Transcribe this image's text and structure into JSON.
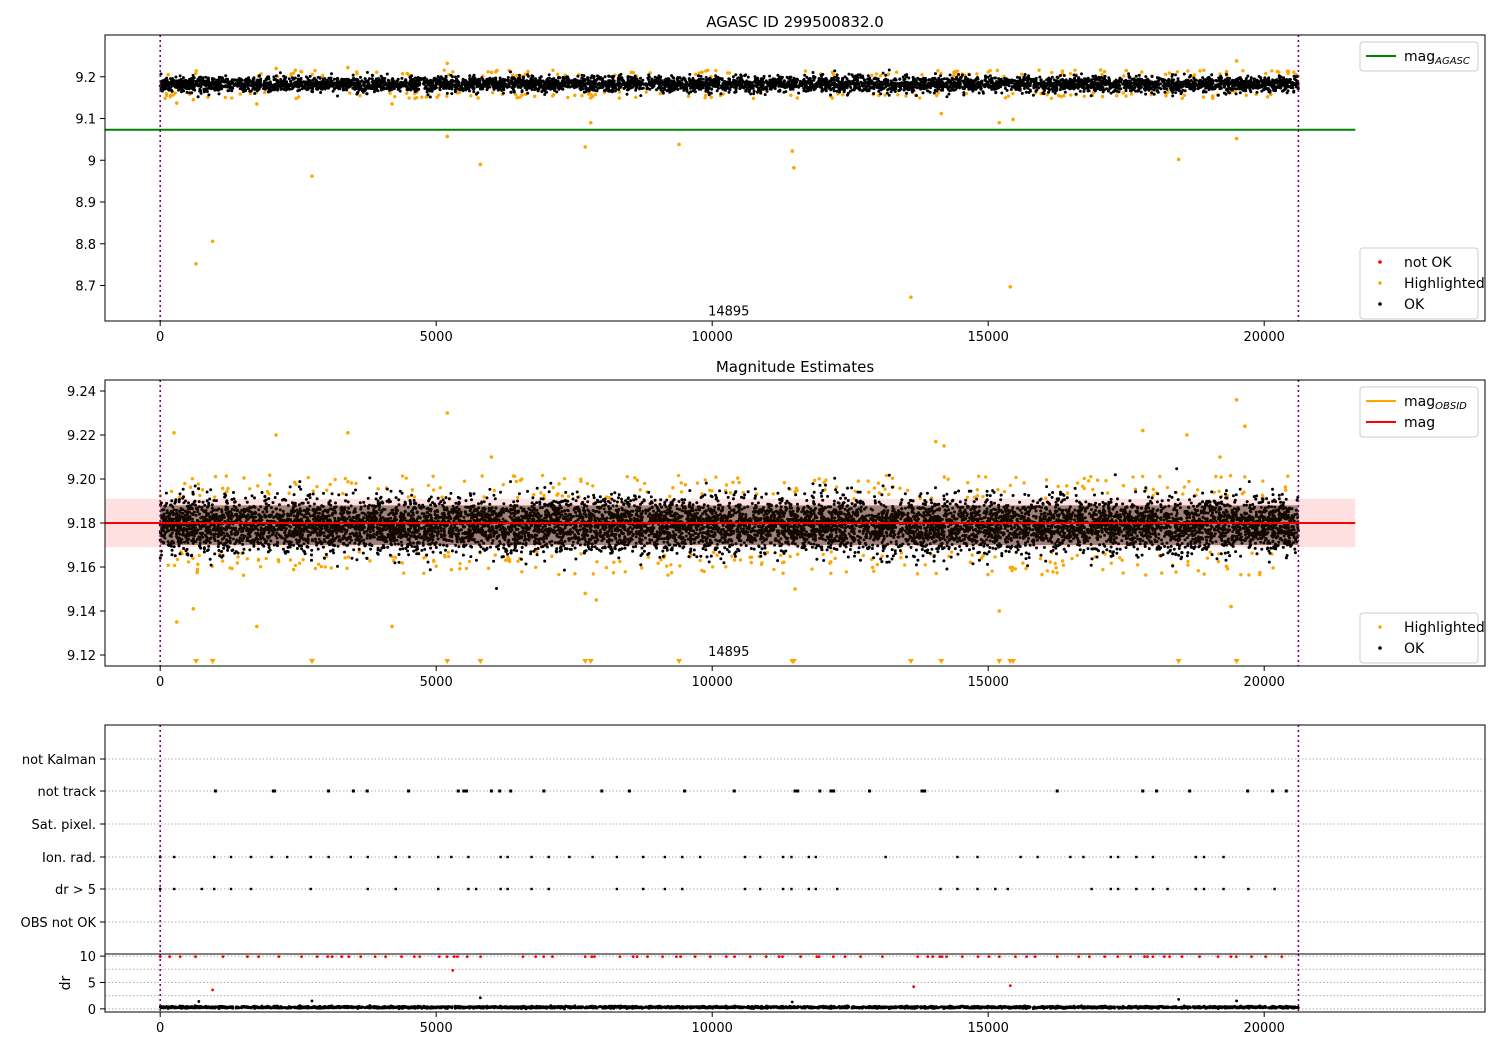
{
  "figure": {
    "panels": [
      {
        "title": "AGASC ID 299500832.0",
        "type": "scatter",
        "xlim": [
          -1000,
          24000
        ],
        "ylim": [
          8.615,
          9.3
        ],
        "xticks": [
          0,
          5000,
          10000,
          15000,
          20000
        ],
        "yticks": [
          8.7,
          8.8,
          8.9,
          9.0,
          9.1,
          9.2
        ],
        "vlines": [
          0,
          20620
        ],
        "hlines": [
          {
            "y": 9.073,
            "x": [
              -1000,
              21650
            ],
            "color": "#008000",
            "legend": "mag_AGASC"
          }
        ],
        "annotation": {
          "text": "14895",
          "x": 10300,
          "y": 8.64
        },
        "ok_band": {
          "center": 9.182,
          "spread": 0.018,
          "x": [
            0,
            20620
          ],
          "color": "#000000"
        },
        "highlighted": {
          "color": "#ffa500",
          "points": [
            [
              650,
              8.752
            ],
            [
              950,
              8.806
            ],
            [
              2750,
              8.962
            ],
            [
              5200,
              9.057
            ],
            [
              5800,
              8.99
            ],
            [
              7700,
              9.032
            ],
            [
              7800,
              9.09
            ],
            [
              9400,
              9.038
            ],
            [
              11450,
              9.022
            ],
            [
              11480,
              8.982
            ],
            [
              13600,
              8.672
            ],
            [
              14150,
              9.112
            ],
            [
              15200,
              9.09
            ],
            [
              15400,
              8.697
            ],
            [
              15450,
              9.098
            ],
            [
              18450,
              9.002
            ],
            [
              19500,
              9.052
            ],
            [
              300,
              9.137
            ],
            [
              600,
              9.145
            ],
            [
              1750,
              9.135
            ],
            [
              4200,
              9.135
            ],
            [
              5200,
              9.232
            ],
            [
              19500,
              9.238
            ],
            [
              3400,
              9.222
            ],
            [
              2100,
              9.22
            ],
            [
              6100,
              9.215
            ],
            [
              17500,
              9.215
            ]
          ],
          "edge_density": 0.012
        },
        "legends": [
          {
            "position": "upper-right",
            "entries": [
              {
                "label": "mag",
                "sub": "AGASC",
                "kind": "line",
                "color": "#008000"
              }
            ]
          },
          {
            "position": "lower-right",
            "entries": [
              {
                "label": "not OK",
                "kind": "marker",
                "color": "#ff0000"
              },
              {
                "label": "Highlighted",
                "kind": "marker",
                "color": "#ffa500"
              },
              {
                "label": "OK",
                "kind": "marker",
                "color": "#000000"
              }
            ]
          }
        ]
      },
      {
        "title": "Magnitude Estimates",
        "type": "scatter",
        "xlim": [
          -1000,
          24000
        ],
        "ylim": [
          9.115,
          9.245
        ],
        "xticks": [
          0,
          5000,
          10000,
          15000,
          20000
        ],
        "yticks": [
          9.12,
          9.14,
          9.16,
          9.18,
          9.2,
          9.22,
          9.24
        ],
        "yticklabels": [
          "9.12",
          "9.14",
          "9.16",
          "9.18",
          "9.20",
          "9.22",
          "9.24"
        ],
        "vlines": [
          0,
          20620
        ],
        "hlines": [
          {
            "y": 9.18,
            "x": [
              -1000,
              21650
            ],
            "color": "#ff0000",
            "legend": "mag"
          }
        ],
        "band": {
          "y": [
            9.169,
            9.191
          ],
          "x": [
            -1000,
            21650
          ],
          "color": "#ffcccc"
        },
        "annotation": {
          "text": "14895",
          "x": 10300,
          "y": 9.12
        },
        "ok_band": {
          "center": 9.179,
          "spread": 0.012,
          "x": [
            0,
            20620
          ],
          "color": "#000000"
        },
        "highlighted": {
          "color": "#ffa500",
          "points": [
            [
              250,
              9.221
            ],
            [
              300,
              9.135
            ],
            [
              600,
              9.141
            ],
            [
              1750,
              9.133
            ],
            [
              2100,
              9.22
            ],
            [
              3400,
              9.221
            ],
            [
              4200,
              9.133
            ],
            [
              5200,
              9.23
            ],
            [
              6000,
              9.21
            ],
            [
              7700,
              9.148
            ],
            [
              7900,
              9.145
            ],
            [
              11500,
              9.15
            ],
            [
              14050,
              9.217
            ],
            [
              14200,
              9.215
            ],
            [
              15200,
              9.14
            ],
            [
              17800,
              9.222
            ],
            [
              18600,
              9.22
            ],
            [
              19200,
              9.21
            ],
            [
              19500,
              9.236
            ],
            [
              19650,
              9.224
            ],
            [
              19400,
              9.142
            ]
          ],
          "edge_density": 0.02
        },
        "off_scale": {
          "color": "#ffa500",
          "marker": "triangle-down",
          "x": [
            650,
            950,
            2750,
            5200,
            5800,
            7700,
            7800,
            9400,
            11450,
            11480,
            13600,
            14150,
            15200,
            15400,
            15450,
            18450,
            19500
          ]
        },
        "legends": [
          {
            "position": "upper-right",
            "entries": [
              {
                "label": "mag",
                "sub": "OBSID",
                "kind": "line",
                "color": "#ffa500"
              },
              {
                "label": "mag",
                "kind": "line",
                "color": "#ff0000"
              }
            ]
          },
          {
            "position": "lower-right",
            "entries": [
              {
                "label": "Highlighted",
                "kind": "marker",
                "color": "#ffa500"
              },
              {
                "label": "OK",
                "kind": "marker",
                "color": "#000000"
              }
            ]
          }
        ]
      },
      {
        "title": "",
        "type": "flags",
        "xlim": [
          -1000,
          24000
        ],
        "vlines": [
          0,
          20620
        ],
        "rows": [
          "not Kalman",
          "not track",
          "Sat. pixel.",
          "Ion. rad.",
          "dr > 5",
          "OBS not OK"
        ],
        "row_events": {
          "not track": [
            1000,
            2050,
            2070,
            3050,
            3500,
            3750,
            4500,
            5400,
            5500,
            5550,
            6000,
            6150,
            6350,
            6950,
            8000,
            8500,
            9500,
            10400,
            11500,
            11550,
            11950,
            12150,
            12200,
            12850,
            13800,
            13850,
            16250,
            17800,
            18050,
            18650,
            19700,
            20150,
            20400
          ],
          "Ion. rad.": [],
          "dr > 5": []
        }
      },
      {
        "title": "",
        "type": "scatter",
        "ylabel": "dr",
        "xlim": [
          -1000,
          24000
        ],
        "ylim": [
          -0.6,
          10.4
        ],
        "xticks": [
          0,
          5000,
          10000,
          15000,
          20000
        ],
        "yticks": [
          0,
          5,
          10
        ],
        "vlines": [
          0,
          20620
        ],
        "ok_band": {
          "center": 0.3,
          "spread": 0.18,
          "x": [
            0,
            20620
          ],
          "color": "#000000"
        },
        "not_ok": {
          "color": "#ff0000",
          "y": 9.9,
          "outliers": [
            [
              5300,
              7.3
            ],
            [
              950,
              3.6
            ],
            [
              13650,
              4.2
            ],
            [
              15400,
              4.4
            ]
          ]
        },
        "black_outliers": [
          [
            5800,
            2.1
          ],
          [
            18450,
            1.8
          ],
          [
            2750,
            1.5
          ],
          [
            11450,
            1.3
          ],
          [
            700,
            1.4
          ],
          [
            19500,
            1.5
          ]
        ]
      }
    ]
  }
}
